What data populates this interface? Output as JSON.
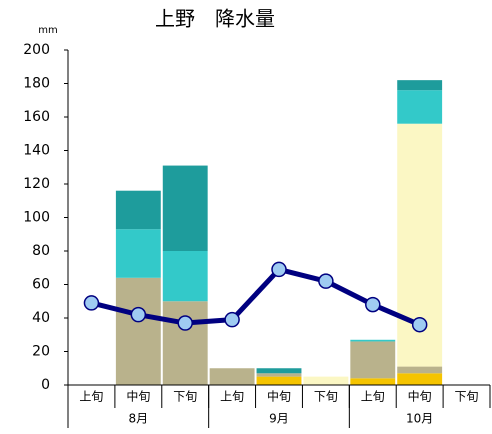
{
  "chart_data": {
    "type": "bar-line",
    "title": "上野　降水量",
    "unit": "mm",
    "categories": [
      "上旬",
      "中旬",
      "下旬",
      "上旬",
      "中旬",
      "下旬",
      "上旬",
      "中旬",
      "下旬"
    ],
    "groups": [
      "8月",
      "9月",
      "10月"
    ],
    "series": [
      {
        "color": "#f5c400",
        "values": [
          null,
          null,
          null,
          null,
          5,
          null,
          4,
          7,
          null
        ]
      },
      {
        "color": "#b9b28c",
        "values": [
          null,
          64,
          50,
          10,
          2,
          null,
          22,
          4,
          null
        ]
      },
      {
        "color": "#fbf7c4",
        "values": [
          null,
          null,
          null,
          null,
          null,
          5,
          null,
          145,
          null
        ]
      },
      {
        "color": "#33c9c9",
        "values": [
          null,
          29,
          30,
          null,
          null,
          null,
          1,
          20,
          null
        ]
      },
      {
        "color": "#1e9c9c",
        "values": [
          null,
          23,
          51,
          null,
          3,
          null,
          null,
          6,
          null
        ]
      }
    ],
    "line": {
      "color": "#000080",
      "marker_color": "#9fcbf2",
      "values": [
        49,
        42,
        37,
        39,
        69,
        62,
        48,
        36,
        null
      ]
    },
    "ylim": [
      0,
      200
    ],
    "yticks": [
      0,
      20,
      40,
      60,
      80,
      100,
      120,
      140,
      160,
      180,
      200
    ],
    "grid": false
  }
}
